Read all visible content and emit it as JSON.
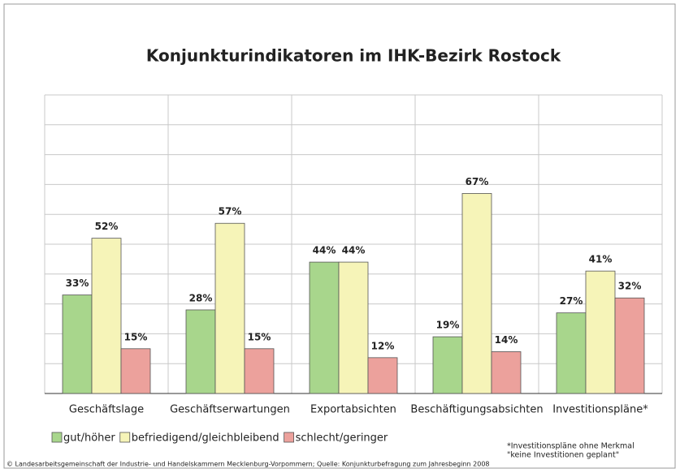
{
  "chart_data": {
    "type": "bar",
    "title": "Konjunkturindikatoren im IHK-Bezirk Rostock",
    "categories": [
      "Geschäftslage",
      "Geschäftserwartungen",
      "Exportabsichten",
      "Beschäftigungsabsichten",
      "Investitionspläne*"
    ],
    "series": [
      {
        "name": "gut/höher",
        "color": "#a8d68c",
        "values": [
          33,
          28,
          44,
          19,
          27
        ],
        "value_labels": [
          "33%",
          "28%",
          "44%",
          "19%",
          "27%"
        ]
      },
      {
        "name": "befriedigend/gleichbleibend",
        "color": "#f6f4b8",
        "values": [
          52,
          57,
          44,
          67,
          41
        ],
        "value_labels": [
          "52%",
          "57%",
          "44%",
          "67%",
          "41%"
        ]
      },
      {
        "name": "schlecht/geringer",
        "color": "#eca19c",
        "values": [
          15,
          15,
          12,
          14,
          32
        ],
        "value_labels": [
          "15%",
          "15%",
          "12%",
          "14%",
          "32%"
        ]
      }
    ],
    "ylim": [
      0,
      100
    ],
    "yticks": [
      0,
      10,
      20,
      30,
      40,
      50,
      60,
      70,
      80,
      90,
      100
    ],
    "grid": true,
    "notes": [
      "*Investitionspläne ohne Merkmal",
      "\"keine Investitionen geplant\""
    ],
    "source": "© Landesarbeitsgemeinschaft der Industrie- und Handelskammern Mecklenburg-Vorpommern; Quelle: Konjunkturbefragung zum Jahresbeginn 2008"
  }
}
